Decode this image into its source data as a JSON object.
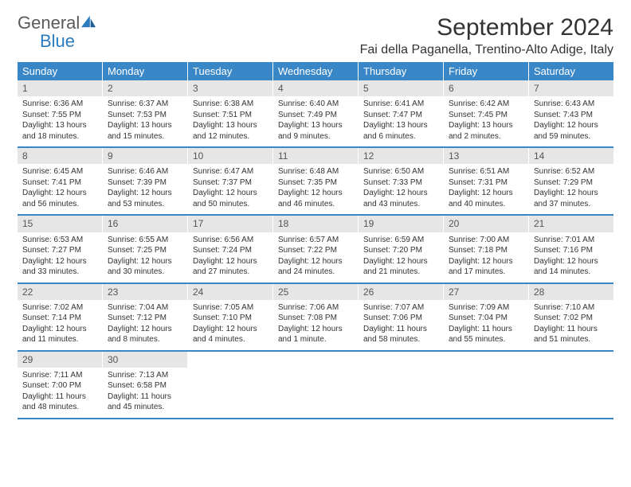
{
  "brand": {
    "text1": "General",
    "text2": "Blue"
  },
  "title": "September 2024",
  "location": "Fai della Paganella, Trentino-Alto Adige, Italy",
  "colors": {
    "header_bg": "#3a87c8",
    "header_text": "#ffffff",
    "daynum_bg": "#e6e6e6",
    "body_text": "#333333",
    "rule": "#3a87c8",
    "logo_gray": "#5a5a5a",
    "logo_blue": "#2a7bbf"
  },
  "typography": {
    "month_title_pt": 30,
    "location_pt": 16,
    "dow_pt": 13,
    "daynum_pt": 12,
    "body_pt": 10
  },
  "dow": [
    "Sunday",
    "Monday",
    "Tuesday",
    "Wednesday",
    "Thursday",
    "Friday",
    "Saturday"
  ],
  "weeks": [
    [
      {
        "n": "1",
        "sunrise": "Sunrise: 6:36 AM",
        "sunset": "Sunset: 7:55 PM",
        "daylight": "Daylight: 13 hours and 18 minutes."
      },
      {
        "n": "2",
        "sunrise": "Sunrise: 6:37 AM",
        "sunset": "Sunset: 7:53 PM",
        "daylight": "Daylight: 13 hours and 15 minutes."
      },
      {
        "n": "3",
        "sunrise": "Sunrise: 6:38 AM",
        "sunset": "Sunset: 7:51 PM",
        "daylight": "Daylight: 13 hours and 12 minutes."
      },
      {
        "n": "4",
        "sunrise": "Sunrise: 6:40 AM",
        "sunset": "Sunset: 7:49 PM",
        "daylight": "Daylight: 13 hours and 9 minutes."
      },
      {
        "n": "5",
        "sunrise": "Sunrise: 6:41 AM",
        "sunset": "Sunset: 7:47 PM",
        "daylight": "Daylight: 13 hours and 6 minutes."
      },
      {
        "n": "6",
        "sunrise": "Sunrise: 6:42 AM",
        "sunset": "Sunset: 7:45 PM",
        "daylight": "Daylight: 13 hours and 2 minutes."
      },
      {
        "n": "7",
        "sunrise": "Sunrise: 6:43 AM",
        "sunset": "Sunset: 7:43 PM",
        "daylight": "Daylight: 12 hours and 59 minutes."
      }
    ],
    [
      {
        "n": "8",
        "sunrise": "Sunrise: 6:45 AM",
        "sunset": "Sunset: 7:41 PM",
        "daylight": "Daylight: 12 hours and 56 minutes."
      },
      {
        "n": "9",
        "sunrise": "Sunrise: 6:46 AM",
        "sunset": "Sunset: 7:39 PM",
        "daylight": "Daylight: 12 hours and 53 minutes."
      },
      {
        "n": "10",
        "sunrise": "Sunrise: 6:47 AM",
        "sunset": "Sunset: 7:37 PM",
        "daylight": "Daylight: 12 hours and 50 minutes."
      },
      {
        "n": "11",
        "sunrise": "Sunrise: 6:48 AM",
        "sunset": "Sunset: 7:35 PM",
        "daylight": "Daylight: 12 hours and 46 minutes."
      },
      {
        "n": "12",
        "sunrise": "Sunrise: 6:50 AM",
        "sunset": "Sunset: 7:33 PM",
        "daylight": "Daylight: 12 hours and 43 minutes."
      },
      {
        "n": "13",
        "sunrise": "Sunrise: 6:51 AM",
        "sunset": "Sunset: 7:31 PM",
        "daylight": "Daylight: 12 hours and 40 minutes."
      },
      {
        "n": "14",
        "sunrise": "Sunrise: 6:52 AM",
        "sunset": "Sunset: 7:29 PM",
        "daylight": "Daylight: 12 hours and 37 minutes."
      }
    ],
    [
      {
        "n": "15",
        "sunrise": "Sunrise: 6:53 AM",
        "sunset": "Sunset: 7:27 PM",
        "daylight": "Daylight: 12 hours and 33 minutes."
      },
      {
        "n": "16",
        "sunrise": "Sunrise: 6:55 AM",
        "sunset": "Sunset: 7:25 PM",
        "daylight": "Daylight: 12 hours and 30 minutes."
      },
      {
        "n": "17",
        "sunrise": "Sunrise: 6:56 AM",
        "sunset": "Sunset: 7:24 PM",
        "daylight": "Daylight: 12 hours and 27 minutes."
      },
      {
        "n": "18",
        "sunrise": "Sunrise: 6:57 AM",
        "sunset": "Sunset: 7:22 PM",
        "daylight": "Daylight: 12 hours and 24 minutes."
      },
      {
        "n": "19",
        "sunrise": "Sunrise: 6:59 AM",
        "sunset": "Sunset: 7:20 PM",
        "daylight": "Daylight: 12 hours and 21 minutes."
      },
      {
        "n": "20",
        "sunrise": "Sunrise: 7:00 AM",
        "sunset": "Sunset: 7:18 PM",
        "daylight": "Daylight: 12 hours and 17 minutes."
      },
      {
        "n": "21",
        "sunrise": "Sunrise: 7:01 AM",
        "sunset": "Sunset: 7:16 PM",
        "daylight": "Daylight: 12 hours and 14 minutes."
      }
    ],
    [
      {
        "n": "22",
        "sunrise": "Sunrise: 7:02 AM",
        "sunset": "Sunset: 7:14 PM",
        "daylight": "Daylight: 12 hours and 11 minutes."
      },
      {
        "n": "23",
        "sunrise": "Sunrise: 7:04 AM",
        "sunset": "Sunset: 7:12 PM",
        "daylight": "Daylight: 12 hours and 8 minutes."
      },
      {
        "n": "24",
        "sunrise": "Sunrise: 7:05 AM",
        "sunset": "Sunset: 7:10 PM",
        "daylight": "Daylight: 12 hours and 4 minutes."
      },
      {
        "n": "25",
        "sunrise": "Sunrise: 7:06 AM",
        "sunset": "Sunset: 7:08 PM",
        "daylight": "Daylight: 12 hours and 1 minute."
      },
      {
        "n": "26",
        "sunrise": "Sunrise: 7:07 AM",
        "sunset": "Sunset: 7:06 PM",
        "daylight": "Daylight: 11 hours and 58 minutes."
      },
      {
        "n": "27",
        "sunrise": "Sunrise: 7:09 AM",
        "sunset": "Sunset: 7:04 PM",
        "daylight": "Daylight: 11 hours and 55 minutes."
      },
      {
        "n": "28",
        "sunrise": "Sunrise: 7:10 AM",
        "sunset": "Sunset: 7:02 PM",
        "daylight": "Daylight: 11 hours and 51 minutes."
      }
    ],
    [
      {
        "n": "29",
        "sunrise": "Sunrise: 7:11 AM",
        "sunset": "Sunset: 7:00 PM",
        "daylight": "Daylight: 11 hours and 48 minutes."
      },
      {
        "n": "30",
        "sunrise": "Sunrise: 7:13 AM",
        "sunset": "Sunset: 6:58 PM",
        "daylight": "Daylight: 11 hours and 45 minutes."
      },
      null,
      null,
      null,
      null,
      null
    ]
  ]
}
